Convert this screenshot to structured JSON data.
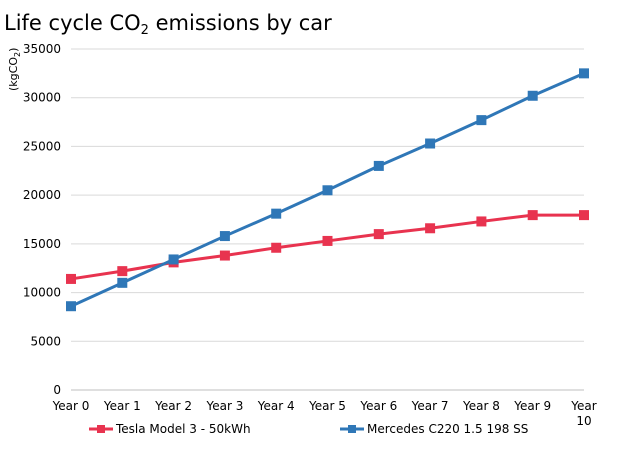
{
  "chart_data": {
    "type": "line",
    "title": {
      "pre": "Life cycle CO",
      "sub": "2",
      "post": " emissions by car"
    },
    "ylabel": {
      "pre": "(kgCO",
      "sub": "2",
      "post": ")"
    },
    "xlabel": "",
    "categories": [
      "Year 0",
      "Year 1",
      "Year 2",
      "Year 3",
      "Year 4",
      "Year 5",
      "Year 6",
      "Year 7",
      "Year 8",
      "Year 9",
      "Year 10"
    ],
    "ylim": [
      0,
      35000
    ],
    "yticks": [
      0,
      5000,
      10000,
      15000,
      20000,
      25000,
      30000,
      35000
    ],
    "grid": true,
    "legend_position": "bottom",
    "series": [
      {
        "name": "Tesla Model 3 - 50kWh",
        "color": "#e8334f",
        "marker": "square",
        "values": [
          11400,
          12200,
          13100,
          13800,
          14600,
          15300,
          16000,
          16600,
          17300,
          17950,
          17950
        ]
      },
      {
        "name": "Mercedes C220 1.5 198 SS",
        "color": "#2f77b7",
        "marker": "square",
        "values": [
          8600,
          11000,
          13400,
          15800,
          18100,
          20500,
          23000,
          25300,
          27700,
          30200,
          32500
        ]
      }
    ]
  }
}
